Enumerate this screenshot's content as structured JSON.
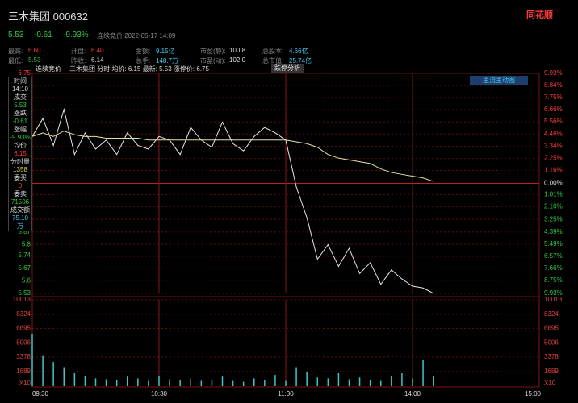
{
  "header": {
    "title": "三木集团 000632",
    "logo": "同花顺"
  },
  "quote": {
    "price": "5.53",
    "change": "-0.61",
    "pct": "-9.93%",
    "status": "连续竞价 2022-05-17 14:09"
  },
  "stats": [
    [
      {
        "label": "最高:",
        "value": "6.60"
      },
      {
        "label": "开盘:",
        "value": "6.40"
      },
      {
        "label": "金额:",
        "value": "9.15亿"
      },
      {
        "label": "市盈(静):",
        "value": "100.8"
      },
      {
        "label": "总股本:",
        "value": "4.66亿"
      }
    ],
    [
      {
        "label": "最低:",
        "value": "5.53"
      },
      {
        "label": "昨收:",
        "value": "6.14"
      },
      {
        "label": "总手:",
        "value": "148.7万"
      },
      {
        "label": "市盈(动):",
        "value": "102.0"
      },
      {
        "label": "总市值:",
        "value": "25.74亿"
      }
    ]
  ],
  "info_bar": {
    "status": "连续竞价",
    "text": "三木集团 分时 均价: 6.15 最新: 5.53 涨停价: 6.75",
    "button": "跌停分析",
    "panel_button": "主流主动图"
  },
  "sidebar": [
    {
      "label": "时间",
      "value": "14:10"
    },
    {
      "label": "成交",
      "value": "5.53"
    },
    {
      "label": "涨跌",
      "value": "-0.61"
    },
    {
      "label": "涨幅",
      "value": "-9.93%"
    },
    {
      "label": "均价",
      "value": "6.15"
    },
    {
      "label": "分时量",
      "value": "1358"
    },
    {
      "label": "委买",
      "value": "0"
    },
    {
      "label": "委卖",
      "value": "71506"
    },
    {
      "label": "成交额",
      "value": "75.10万"
    }
  ],
  "chart_data": [
    {
      "type": "line",
      "x": [
        0,
        5,
        10,
        15,
        20,
        25,
        30,
        35,
        40,
        45,
        50,
        55,
        60,
        65,
        70,
        75,
        80,
        85,
        90,
        95,
        100,
        105,
        110,
        115,
        120,
        125,
        130,
        135,
        140,
        145,
        150,
        155,
        160,
        165,
        170,
        175,
        180,
        185,
        190
      ],
      "xlim": [
        0,
        240
      ],
      "xticks": [
        60,
        120,
        180
      ],
      "ylim": [
        5.53,
        6.75
      ],
      "yticks": [
        6.75,
        5.87,
        5.8,
        5.74,
        5.67,
        5.6,
        5.53
      ],
      "y2lim": [
        -9.93,
        9.93
      ],
      "y2ticks": [
        {
          "value": 9.93,
          "label": "9.93%"
        },
        {
          "value": 8.84,
          "label": "8.84%"
        },
        {
          "value": 7.75,
          "label": "7.75%"
        },
        {
          "value": 6.66,
          "label": "6.66%"
        },
        {
          "value": 5.56,
          "label": "5.56%"
        },
        {
          "value": 4.46,
          "label": "4.46%"
        },
        {
          "value": 3.34,
          "label": "3.34%"
        },
        {
          "value": 2.25,
          "label": "2.25%"
        },
        {
          "value": 1.16,
          "label": "1.16%"
        },
        {
          "value": 0,
          "label": "0.00%"
        },
        {
          "value": -1.01,
          "label": "1.01%"
        },
        {
          "value": -2.1,
          "label": "2.10%"
        },
        {
          "value": -3.25,
          "label": "3.25%"
        },
        {
          "value": -4.39,
          "label": "4.39%"
        },
        {
          "value": -5.49,
          "label": "5.49%"
        },
        {
          "value": -6.57,
          "label": "6.57%"
        },
        {
          "value": -7.66,
          "label": "7.66%"
        },
        {
          "value": -8.75,
          "label": "8.75%"
        },
        {
          "value": -9.93,
          "label": "9.93%"
        }
      ],
      "grid": true,
      "series": [
        {
          "color": "#e6e6e6",
          "values": [
            6.4,
            6.5,
            6.35,
            6.55,
            6.3,
            6.42,
            6.33,
            6.38,
            6.3,
            6.42,
            6.35,
            6.33,
            6.4,
            6.38,
            6.3,
            6.45,
            6.38,
            6.34,
            6.48,
            6.36,
            6.32,
            6.4,
            6.45,
            6.42,
            6.38,
            6.12,
            5.95,
            5.72,
            5.8,
            5.68,
            5.78,
            5.64,
            5.7,
            5.58,
            5.66,
            5.61,
            5.57,
            5.56,
            5.53
          ]
        },
        {
          "color": "#e4e0a6",
          "values": [
            6.4,
            6.42,
            6.4,
            6.43,
            6.41,
            6.4,
            6.4,
            6.39,
            6.39,
            6.39,
            6.39,
            6.38,
            6.38,
            6.38,
            6.38,
            6.38,
            6.38,
            6.38,
            6.38,
            6.38,
            6.38,
            6.38,
            6.38,
            6.38,
            6.38,
            6.37,
            6.36,
            6.34,
            6.3,
            6.28,
            6.27,
            6.26,
            6.25,
            6.22,
            6.2,
            6.19,
            6.18,
            6.17,
            6.15
          ]
        }
      ]
    },
    {
      "type": "bar",
      "x": [
        0,
        5,
        10,
        15,
        20,
        25,
        30,
        35,
        40,
        45,
        50,
        55,
        60,
        65,
        70,
        75,
        80,
        85,
        90,
        95,
        100,
        105,
        110,
        115,
        120,
        125,
        130,
        135,
        140,
        145,
        150,
        155,
        160,
        165,
        170,
        175,
        180,
        185,
        190
      ],
      "xlim": [
        0,
        240
      ],
      "xticks": [
        {
          "value": 0,
          "label": "09:30"
        },
        {
          "value": 60,
          "label": "10:30"
        },
        {
          "value": 120,
          "label": "11:30"
        },
        {
          "value": 180,
          "label": "14:00"
        },
        {
          "value": 240,
          "label": "15:00"
        }
      ],
      "ylim": [
        0,
        10013
      ],
      "yticks": [
        1689,
        3378,
        5006,
        6695,
        8324,
        10013
      ],
      "unit_label": "X10",
      "grid": true,
      "color": "#3cc6c6",
      "values": [
        6000,
        3500,
        2800,
        2200,
        1500,
        1200,
        900,
        800,
        700,
        1100,
        900,
        600,
        1200,
        800,
        700,
        900,
        600,
        700,
        1100,
        600,
        500,
        900,
        700,
        1300,
        600,
        2200,
        1600,
        1000,
        900,
        1500,
        800,
        1000,
        700,
        600,
        1200,
        1500,
        900,
        3000,
        1200
      ]
    }
  ]
}
